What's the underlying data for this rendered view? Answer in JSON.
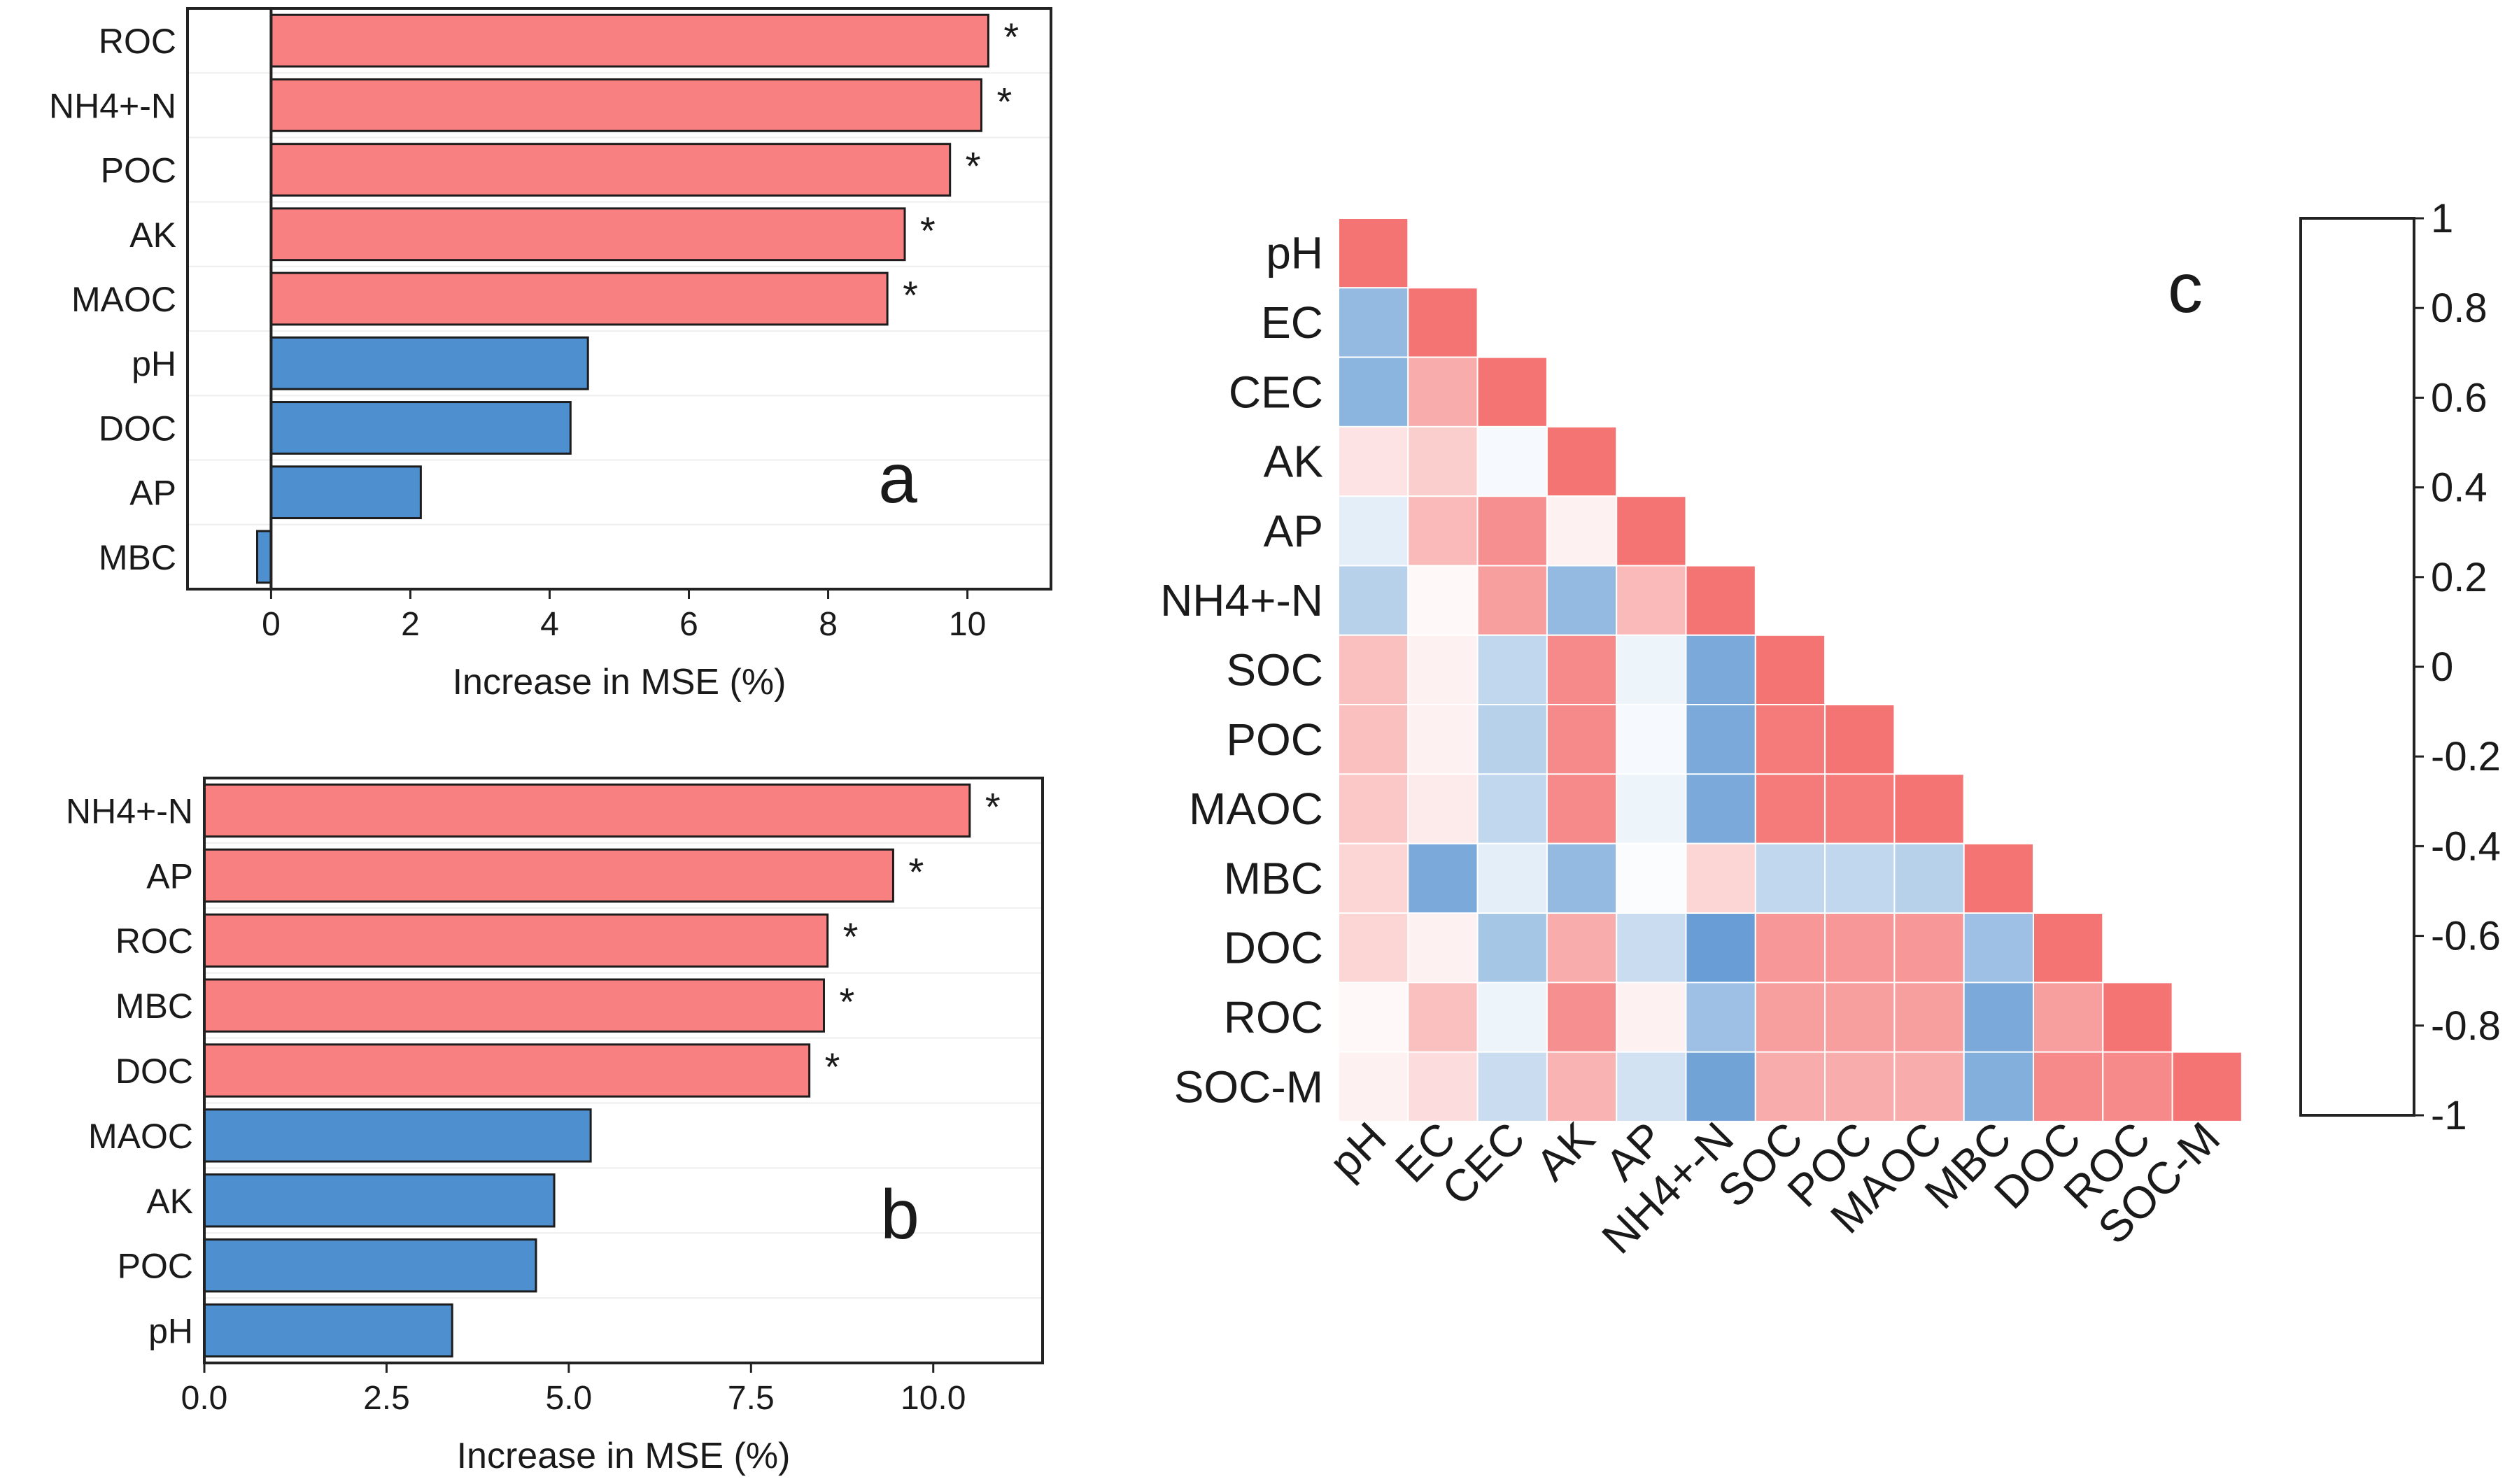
{
  "colors": {
    "significant": "#f88080",
    "non_significant": "#4e8fd0",
    "positive": "#f47474",
    "negative": "#4d8ccd",
    "neutral": "#ffffff"
  },
  "chart_data": [
    {
      "id": "a",
      "type": "bar",
      "orientation": "horizontal",
      "panel_letter": "a",
      "xlabel": "Increase in MSE (%)",
      "xlim": [
        -1.2,
        11.2
      ],
      "xticks": [
        0,
        2,
        4,
        6,
        8,
        10
      ],
      "xtick_labels": [
        "0",
        "2",
        "4",
        "6",
        "8",
        "10"
      ],
      "categories": [
        "ROC",
        "NH4+-N",
        "POC",
        "AK",
        "MAOC",
        "pH",
        "DOC",
        "AP",
        "MBC"
      ],
      "values": [
        10.3,
        10.2,
        9.75,
        9.1,
        8.85,
        4.55,
        4.3,
        2.15,
        -0.2
      ],
      "significant": [
        true,
        true,
        true,
        true,
        true,
        false,
        false,
        false,
        false
      ],
      "marker": "*"
    },
    {
      "id": "b",
      "type": "bar",
      "orientation": "horizontal",
      "panel_letter": "b",
      "xlabel": "Increase in MSE (%)",
      "xlim": [
        0,
        11.5
      ],
      "xticks": [
        0,
        2.5,
        5,
        7.5,
        10
      ],
      "xtick_labels": [
        "0.0",
        "2.5",
        "5.0",
        "7.5",
        "10.0"
      ],
      "categories": [
        "NH4+-N",
        "AP",
        "ROC",
        "MBC",
        "DOC",
        "MAOC",
        "AK",
        "POC",
        "pH"
      ],
      "values": [
        10.5,
        9.45,
        8.55,
        8.5,
        8.3,
        5.3,
        4.8,
        4.55,
        3.4
      ],
      "significant": [
        true,
        true,
        true,
        true,
        true,
        false,
        false,
        false,
        false
      ],
      "marker": "*"
    },
    {
      "id": "c",
      "type": "heatmap",
      "panel_letter": "c",
      "triangle": "lower",
      "variables": [
        "pH",
        "EC",
        "CEC",
        "AK",
        "AP",
        "NH4+-N",
        "SOC",
        "POC",
        "MAOC",
        "MBC",
        "DOC",
        "ROC",
        "SOC-M"
      ],
      "matrix": [
        [
          1
        ],
        [
          -0.6,
          1
        ],
        [
          -0.65,
          0.6,
          1
        ],
        [
          0.2,
          0.35,
          -0.05,
          1
        ],
        [
          -0.15,
          0.5,
          0.8,
          0.1,
          1
        ],
        [
          -0.4,
          0.05,
          0.7,
          -0.6,
          0.5,
          1
        ],
        [
          0.45,
          0.1,
          -0.35,
          0.85,
          -0.1,
          -0.75,
          1
        ],
        [
          0.45,
          0.1,
          -0.4,
          0.85,
          -0.05,
          -0.75,
          0.95,
          1
        ],
        [
          0.4,
          0.15,
          -0.35,
          0.85,
          -0.1,
          -0.75,
          0.95,
          0.95,
          1
        ],
        [
          0.3,
          -0.75,
          -0.15,
          -0.6,
          -0.03,
          0.3,
          -0.35,
          -0.35,
          -0.4,
          1
        ],
        [
          0.3,
          0.1,
          -0.5,
          0.6,
          -0.3,
          -0.85,
          0.75,
          0.75,
          0.75,
          -0.55,
          1
        ],
        [
          0.05,
          0.45,
          -0.1,
          0.8,
          0.1,
          -0.55,
          0.7,
          0.7,
          0.7,
          -0.75,
          0.7,
          1
        ],
        [
          0.1,
          0.25,
          -0.3,
          0.55,
          -0.25,
          -0.8,
          0.6,
          0.6,
          0.6,
          -0.7,
          0.85,
          0.85,
          1
        ]
      ],
      "colorbar": {
        "range": [
          -1,
          1
        ],
        "ticks": [
          1,
          0.8,
          0.6,
          0.4,
          0.2,
          0,
          -0.2,
          -0.4,
          -0.6,
          -0.8,
          -1
        ],
        "tick_labels": [
          "1",
          "0.8",
          "0.6",
          "0.4",
          "0.2",
          "0",
          "-0.2",
          "-0.4",
          "-0.6",
          "-0.8",
          "-1"
        ]
      }
    }
  ]
}
